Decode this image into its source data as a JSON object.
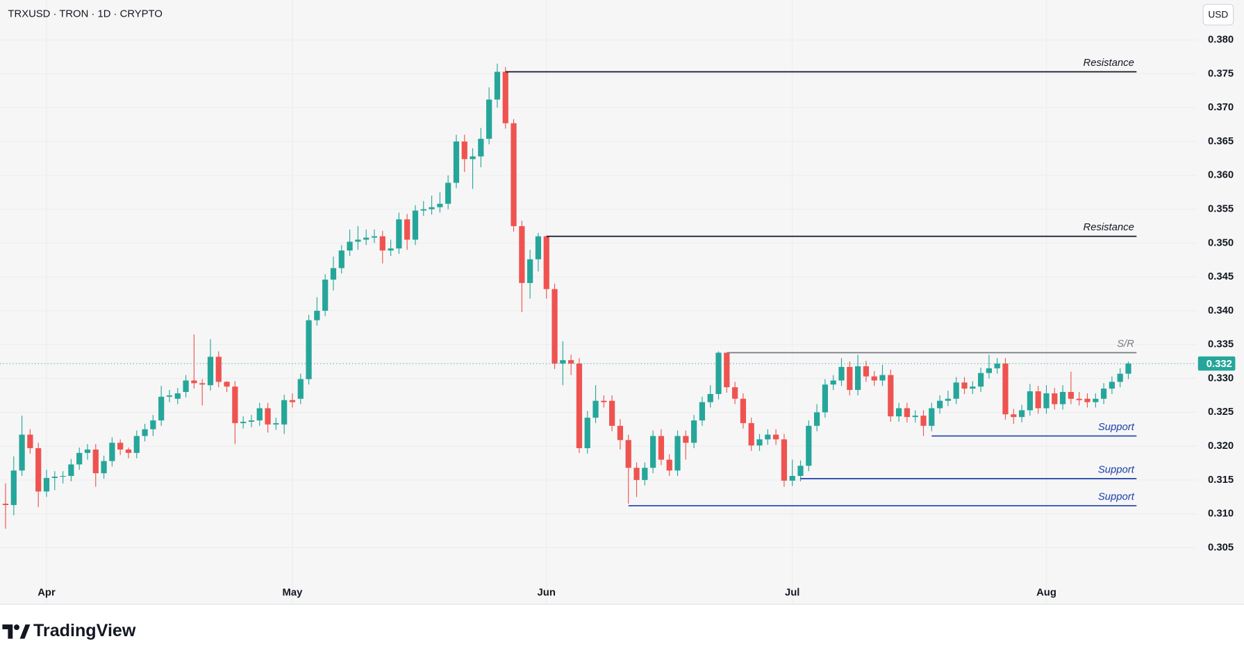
{
  "header": {
    "symbol": "TRXUSD · TRON · 1D · CRYPTO",
    "currency_button": "USD"
  },
  "chart_data": {
    "type": "candlestick",
    "categories": [
      null,
      null,
      null,
      null,
      null,
      "Apr",
      null,
      null,
      null,
      null,
      null,
      null,
      null,
      null,
      null,
      null,
      null,
      null,
      null,
      null,
      null,
      null,
      null,
      null,
      null,
      null,
      null,
      null,
      null,
      null,
      null,
      null,
      null,
      null,
      null,
      "May",
      null,
      null,
      null,
      null,
      null,
      null,
      null,
      null,
      null,
      null,
      null,
      null,
      null,
      null,
      null,
      null,
      null,
      null,
      null,
      null,
      null,
      null,
      null,
      null,
      null,
      null,
      null,
      null,
      null,
      null,
      "Jun",
      null,
      null,
      null,
      null,
      null,
      null,
      null,
      null,
      null,
      null,
      null,
      null,
      null,
      null,
      null,
      null,
      null,
      null,
      null,
      null,
      null,
      null,
      null,
      null,
      null,
      null,
      null,
      null,
      null,
      "Jul",
      null,
      null,
      null,
      null,
      null,
      null,
      null,
      null,
      null,
      null,
      null,
      null,
      null,
      null,
      null,
      null,
      null,
      null,
      null,
      null,
      null,
      null,
      null,
      null,
      null,
      null,
      null,
      null,
      null,
      null,
      "Aug",
      null,
      null,
      null,
      null,
      null,
      null,
      null,
      null,
      null,
      null
    ],
    "open": [
      0.3115,
      0.3113,
      0.3164,
      0.3217,
      0.3197,
      0.3133,
      0.3153,
      0.3155,
      0.3156,
      0.3173,
      0.319,
      0.3195,
      0.316,
      0.3178,
      0.3205,
      0.3195,
      0.319,
      0.3215,
      0.3225,
      0.3238,
      0.3273,
      0.327,
      0.328,
      0.3297,
      0.3293,
      0.329,
      0.3332,
      0.3295,
      0.3288,
      0.3234,
      0.3236,
      0.3238,
      0.3256,
      0.3232,
      0.3232,
      0.3268,
      0.327,
      0.3299,
      0.3386,
      0.34,
      0.3446,
      0.3463,
      0.3489,
      0.3502,
      0.3505,
      0.3508,
      0.351,
      0.3489,
      0.3492,
      0.3535,
      0.3505,
      0.3548,
      0.355,
      0.3553,
      0.3558,
      0.3589,
      0.365,
      0.3624,
      0.3628,
      0.3654,
      0.3712,
      0.3753,
      0.3677,
      0.3525,
      0.3441,
      0.3476,
      0.351,
      0.3432,
      0.3322,
      0.3327,
      0.3322,
      0.3197,
      0.3242,
      0.3267,
      0.3267,
      0.323,
      0.3209,
      0.3168,
      0.315,
      0.3168,
      0.3215,
      0.318,
      0.3164,
      0.3215,
      0.3205,
      0.3238,
      0.3265,
      0.3277,
      0.3338,
      0.3287,
      0.327,
      0.3234,
      0.3201,
      0.321,
      0.3217,
      0.321,
      0.3149,
      0.3156,
      0.3171,
      0.323,
      0.325,
      0.3291,
      0.3297,
      0.3317,
      0.3283,
      0.3318,
      0.3303,
      0.3297,
      0.3305,
      0.3244,
      0.3256,
      0.3243,
      0.3245,
      0.323,
      0.3256,
      0.3267,
      0.327,
      0.3294,
      0.3285,
      0.3288,
      0.3308,
      0.3315,
      0.3322,
      0.3247,
      0.3243,
      0.3253,
      0.3281,
      0.3256,
      0.3278,
      0.3262,
      0.328,
      0.327,
      0.327,
      0.3265,
      0.327,
      0.3285,
      0.3295,
      0.3307
    ],
    "close": [
      0.3113,
      0.3164,
      0.3217,
      0.3197,
      0.3133,
      0.3153,
      0.3155,
      0.3156,
      0.3173,
      0.319,
      0.3195,
      0.316,
      0.3178,
      0.3205,
      0.3195,
      0.319,
      0.3215,
      0.3225,
      0.3238,
      0.3273,
      0.3275,
      0.3278,
      0.3297,
      0.3293,
      0.3291,
      0.3332,
      0.3295,
      0.3288,
      0.3234,
      0.3236,
      0.3238,
      0.3256,
      0.3232,
      0.3234,
      0.3268,
      0.3265,
      0.3299,
      0.3386,
      0.34,
      0.3446,
      0.3463,
      0.3489,
      0.3502,
      0.3505,
      0.3508,
      0.351,
      0.3489,
      0.3492,
      0.3535,
      0.3505,
      0.3548,
      0.355,
      0.3553,
      0.3558,
      0.3589,
      0.365,
      0.3624,
      0.3628,
      0.3654,
      0.3712,
      0.3753,
      0.3677,
      0.3525,
      0.3441,
      0.3476,
      0.351,
      0.3432,
      0.3322,
      0.3327,
      0.3322,
      0.3197,
      0.3242,
      0.3267,
      0.3265,
      0.323,
      0.3209,
      0.3168,
      0.315,
      0.3168,
      0.3215,
      0.318,
      0.3164,
      0.3215,
      0.3205,
      0.3238,
      0.3265,
      0.3277,
      0.3338,
      0.3287,
      0.327,
      0.3234,
      0.3201,
      0.321,
      0.3217,
      0.321,
      0.3149,
      0.3156,
      0.3171,
      0.323,
      0.325,
      0.3291,
      0.3297,
      0.3317,
      0.3283,
      0.3318,
      0.3303,
      0.3297,
      0.3305,
      0.3244,
      0.3256,
      0.3243,
      0.3245,
      0.323,
      0.3256,
      0.3267,
      0.327,
      0.3294,
      0.3285,
      0.3288,
      0.3308,
      0.3315,
      0.3322,
      0.3247,
      0.3243,
      0.3253,
      0.3281,
      0.3256,
      0.3278,
      0.3262,
      0.328,
      0.327,
      0.3268,
      0.3265,
      0.327,
      0.3285,
      0.3295,
      0.3307,
      0.3322
    ],
    "high": [
      0.3145,
      0.3185,
      0.3245,
      0.3225,
      0.3205,
      0.3165,
      0.3163,
      0.3163,
      0.3181,
      0.3198,
      0.3203,
      0.3203,
      0.3186,
      0.3213,
      0.321,
      0.3198,
      0.3223,
      0.3233,
      0.3246,
      0.3289,
      0.3283,
      0.3286,
      0.3305,
      0.3365,
      0.3299,
      0.3358,
      0.334,
      0.3296,
      0.3296,
      0.3244,
      0.3246,
      0.3264,
      0.3264,
      0.3242,
      0.3276,
      0.3278,
      0.3307,
      0.3394,
      0.342,
      0.3454,
      0.348,
      0.3497,
      0.352,
      0.3525,
      0.352,
      0.352,
      0.3518,
      0.3505,
      0.3545,
      0.3543,
      0.3556,
      0.3562,
      0.357,
      0.3575,
      0.36,
      0.366,
      0.366,
      0.364,
      0.367,
      0.373,
      0.3765,
      0.376,
      0.3683,
      0.3533,
      0.349,
      0.3515,
      0.351,
      0.344,
      0.3355,
      0.3335,
      0.333,
      0.3252,
      0.329,
      0.3275,
      0.3275,
      0.324,
      0.3217,
      0.3176,
      0.3176,
      0.3223,
      0.3225,
      0.3188,
      0.3223,
      0.3223,
      0.3246,
      0.3273,
      0.329,
      0.334,
      0.3335,
      0.3295,
      0.3278,
      0.3242,
      0.3218,
      0.3225,
      0.3225,
      0.3218,
      0.318,
      0.3179,
      0.3238,
      0.3262,
      0.3299,
      0.3305,
      0.333,
      0.3325,
      0.3335,
      0.3326,
      0.3311,
      0.332,
      0.3313,
      0.3264,
      0.3264,
      0.3253,
      0.3253,
      0.3264,
      0.3275,
      0.3282,
      0.3302,
      0.3302,
      0.3296,
      0.3316,
      0.3335,
      0.333,
      0.333,
      0.3255,
      0.3261,
      0.3292,
      0.3289,
      0.329,
      0.3286,
      0.329,
      0.331,
      0.328,
      0.3278,
      0.3278,
      0.3293,
      0.3303,
      0.3315,
      0.3325
    ],
    "low": [
      0.3078,
      0.3098,
      0.3156,
      0.3189,
      0.311,
      0.3125,
      0.3135,
      0.3145,
      0.3148,
      0.3165,
      0.318,
      0.314,
      0.3152,
      0.317,
      0.3187,
      0.3182,
      0.3182,
      0.3207,
      0.3215,
      0.323,
      0.3265,
      0.3262,
      0.3272,
      0.3285,
      0.326,
      0.3282,
      0.3287,
      0.328,
      0.3203,
      0.3226,
      0.3228,
      0.323,
      0.322,
      0.3224,
      0.3218,
      0.3257,
      0.3262,
      0.3291,
      0.3378,
      0.3392,
      0.343,
      0.3455,
      0.3481,
      0.349,
      0.3497,
      0.35,
      0.347,
      0.3481,
      0.3484,
      0.349,
      0.3497,
      0.354,
      0.3542,
      0.3545,
      0.355,
      0.3581,
      0.3605,
      0.358,
      0.3612,
      0.3646,
      0.37,
      0.3669,
      0.3517,
      0.3398,
      0.3418,
      0.3458,
      0.3418,
      0.3314,
      0.329,
      0.3305,
      0.319,
      0.3189,
      0.3234,
      0.3257,
      0.3222,
      0.3195,
      0.3115,
      0.3125,
      0.3142,
      0.316,
      0.3172,
      0.3156,
      0.3156,
      0.318,
      0.3197,
      0.323,
      0.3257,
      0.3269,
      0.3279,
      0.3262,
      0.3226,
      0.3193,
      0.3193,
      0.3202,
      0.3202,
      0.314,
      0.3141,
      0.3148,
      0.3163,
      0.3222,
      0.3242,
      0.3283,
      0.3289,
      0.3275,
      0.3275,
      0.3295,
      0.3289,
      0.3289,
      0.3236,
      0.3236,
      0.3235,
      0.3235,
      0.3215,
      0.3222,
      0.3248,
      0.3259,
      0.3262,
      0.3277,
      0.3277,
      0.328,
      0.33,
      0.3307,
      0.3239,
      0.3233,
      0.3235,
      0.3245,
      0.3248,
      0.3248,
      0.3254,
      0.3254,
      0.3262,
      0.326,
      0.3257,
      0.3257,
      0.3262,
      0.3277,
      0.3287,
      0.3299
    ],
    "up_color": "#26a69a",
    "down_color": "#ef5350",
    "ylim": [
      0.2967,
      0.3859
    ],
    "yticks": [
      0.305,
      {
        "value": 0.31,
        "label": "0.310"
      },
      0.315,
      {
        "value": 0.32,
        "label": "0.320"
      },
      0.325,
      {
        "value": 0.33,
        "label": "0.330"
      },
      0.335,
      {
        "value": 0.34,
        "label": "0.340"
      },
      0.345,
      {
        "value": 0.35,
        "label": "0.350"
      },
      0.355,
      {
        "value": 0.36,
        "label": "0.360"
      },
      0.365,
      {
        "value": 0.37,
        "label": "0.370"
      },
      0.375,
      {
        "value": 0.38,
        "label": "0.380"
      }
    ],
    "grid": true,
    "levels": [
      {
        "label": "Resistance",
        "value": 0.3753,
        "start": 61,
        "color": "#131722"
      },
      {
        "label": "Resistance",
        "value": 0.351,
        "start": 66,
        "color": "#131722"
      },
      {
        "label": "S/R",
        "value": 0.3338,
        "start": 88,
        "color": "#787b86"
      },
      {
        "label": "Support",
        "value": 0.3215,
        "start": 113,
        "color": "#1c3fa8"
      },
      {
        "label": "Support",
        "value": 0.3152,
        "start": 97,
        "color": "#1c3fa8"
      },
      {
        "label": "Support",
        "value": 0.3112,
        "start": 76,
        "color": "#1c3fa8"
      }
    ],
    "last_price_label": "0.332"
  },
  "footer": {
    "brand": "TradingView"
  }
}
